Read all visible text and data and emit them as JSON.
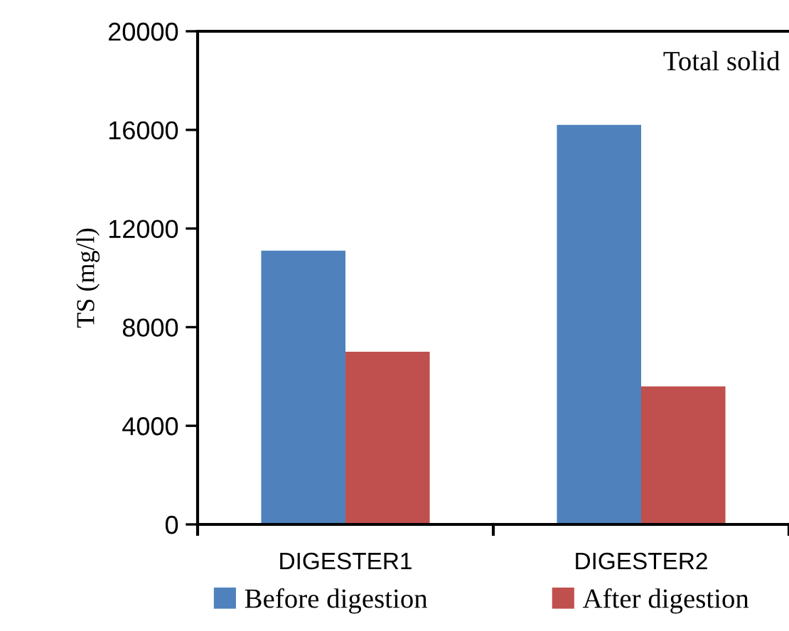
{
  "chart_data": {
    "type": "bar",
    "ylabel": "TS (mg/l)",
    "annotations": [
      "Total solid"
    ],
    "categories": [
      "DIGESTER1",
      "DIGESTER2"
    ],
    "series": [
      {
        "name": "Before digestion",
        "color": "#4f81bd",
        "values": [
          11100,
          16200
        ]
      },
      {
        "name": "After digestion",
        "color": "#c0504d",
        "values": [
          7000,
          5600
        ]
      }
    ],
    "ylim": [
      0,
      20000
    ],
    "yticks": [
      0,
      4000,
      8000,
      12000,
      16000,
      20000
    ],
    "grid": false,
    "legend": "bottom"
  }
}
